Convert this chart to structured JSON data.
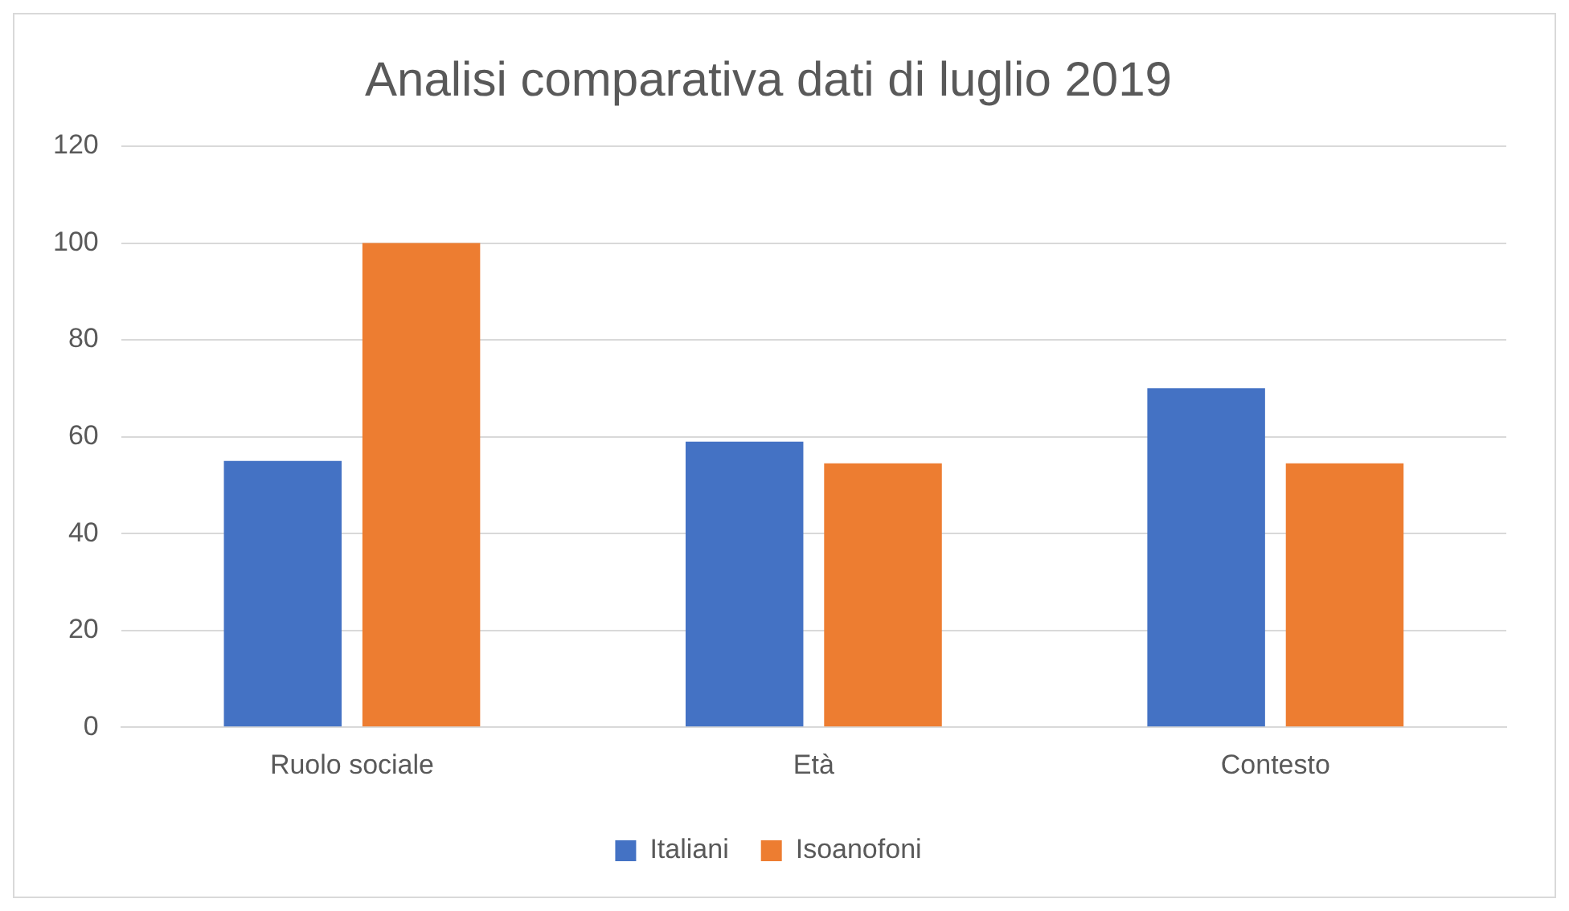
{
  "chart_data": {
    "type": "bar",
    "title": "Analisi comparativa dati di luglio 2019",
    "categories": [
      "Ruolo sociale",
      "Età",
      "Contesto"
    ],
    "series": [
      {
        "name": "Italiani",
        "color": "#4472c4",
        "values": [
          55,
          59,
          70
        ]
      },
      {
        "name": "Isoanofoni",
        "color": "#ed7d31",
        "values": [
          100,
          54.5,
          54.5
        ]
      }
    ],
    "ylim": [
      0,
      120
    ],
    "yticks": [
      0,
      20,
      40,
      60,
      80,
      100,
      120
    ],
    "grid": "y",
    "legend": "bottom"
  }
}
